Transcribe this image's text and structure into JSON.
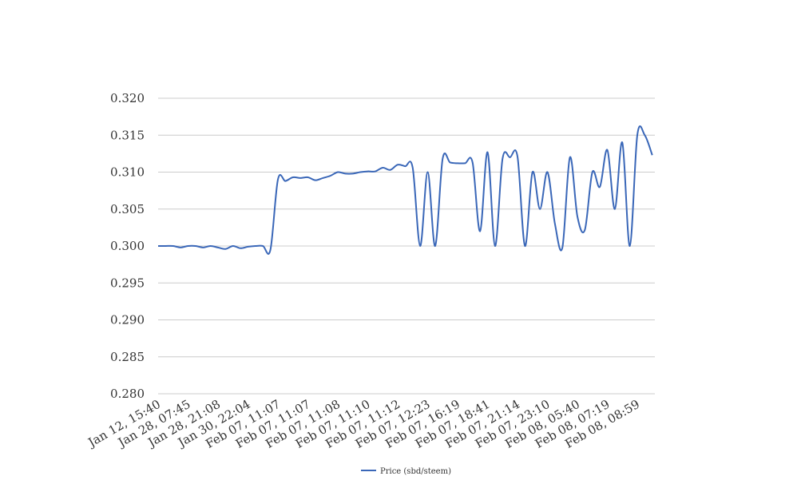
{
  "chart_data": {
    "type": "line",
    "categories": [
      "Jan 12, 15:40",
      null,
      null,
      null,
      "Jan 28, 07:45",
      null,
      null,
      null,
      "Jan 28, 21:08",
      null,
      null,
      null,
      "Jan 30, 22:04",
      null,
      null,
      null,
      "Feb 07, 11:07",
      null,
      null,
      null,
      "Feb 07, 11:07",
      null,
      null,
      null,
      "Feb 07, 11:08",
      null,
      null,
      null,
      "Feb 07, 11:10",
      null,
      null,
      null,
      "Feb 07, 11:12",
      null,
      null,
      null,
      "Feb 07, 12:23",
      null,
      null,
      null,
      "Feb 07, 16:19",
      null,
      null,
      null,
      "Feb 07, 18:41",
      null,
      null,
      null,
      "Feb 07, 21:14",
      null,
      null,
      null,
      "Feb 07, 23:10",
      null,
      null,
      null,
      "Feb 08, 05:40",
      null,
      null,
      null,
      "Feb 08, 07:19",
      null,
      null,
      null,
      "Feb 08, 08:59",
      null,
      null
    ],
    "series": [
      {
        "name": "Price (sbd/steem)",
        "color": "#3a67b8",
        "values": [
          0.3,
          0.3,
          0.3,
          0.2998,
          0.3,
          0.3,
          0.2998,
          0.3,
          0.2998,
          0.2996,
          0.3,
          0.2997,
          0.2999,
          0.3,
          0.3,
          0.2995,
          0.309,
          0.3088,
          0.3093,
          0.3092,
          0.3093,
          0.3089,
          0.3092,
          0.3095,
          0.31,
          0.3098,
          0.3098,
          0.31,
          0.3101,
          0.3101,
          0.3106,
          0.3103,
          0.311,
          0.3108,
          0.3106,
          0.3,
          0.31,
          0.3,
          0.3118,
          0.3113,
          0.3112,
          0.3112,
          0.3113,
          0.302,
          0.3127,
          0.3,
          0.3118,
          0.312,
          0.3121,
          0.3,
          0.31,
          0.305,
          0.31,
          0.303,
          0.2998,
          0.312,
          0.304,
          0.3022,
          0.31,
          0.308,
          0.313,
          0.305,
          0.314,
          0.3,
          0.315,
          0.315,
          0.3123
        ]
      }
    ],
    "ylim": [
      0.28,
      0.32
    ],
    "yticks": [
      {
        "value": 0.28,
        "label": "0.280"
      },
      0.285,
      {
        "value": 0.29,
        "label": "0.290"
      },
      0.295,
      {
        "value": 0.3,
        "label": "0.300"
      },
      0.305,
      {
        "value": 0.31,
        "label": "0.310"
      },
      0.315,
      {
        "value": 0.32,
        "label": "0.320"
      }
    ],
    "grid": true,
    "legend": "bottom"
  }
}
